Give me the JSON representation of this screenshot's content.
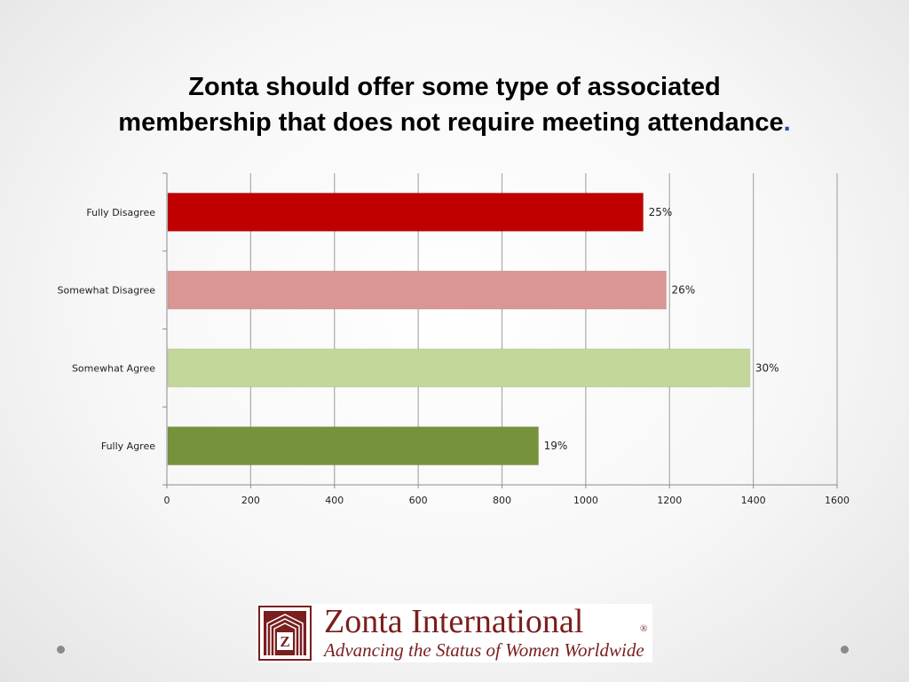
{
  "slide": {
    "title_line1": "Zonta should offer some type of associated",
    "title_line2": "membership that does not require meeting attendance",
    "title_dot": "."
  },
  "colors": {
    "fully_disagree": "#c00000",
    "somewhat_disagree": "#da9694",
    "somewhat_agree": "#c4d79b",
    "fully_agree": "#76933c",
    "gridline": "#b0b0b0",
    "brand": "#7a1e1e"
  },
  "chart_data": {
    "type": "bar",
    "orientation": "horizontal",
    "categories": [
      "Fully Disagree",
      "Somewhat Disagree",
      "Somewhat Agree",
      "Fully Agree"
    ],
    "values": [
      1135,
      1190,
      1390,
      885
    ],
    "data_labels": [
      "25%",
      "26%",
      "30%",
      "19%"
    ],
    "bar_colors": [
      "#c00000",
      "#da9694",
      "#c4d79b",
      "#76933c"
    ],
    "xlim": [
      0,
      1600
    ],
    "xticks": [
      0,
      200,
      400,
      600,
      800,
      1000,
      1200,
      1400,
      1600
    ],
    "title": "",
    "xlabel": "",
    "ylabel": "",
    "grid": true,
    "legend": "none"
  },
  "logo": {
    "name": "Zonta International",
    "registered": "®",
    "tagline": "Advancing the Status of Women Worldwide",
    "emblem_letter": "Z"
  }
}
